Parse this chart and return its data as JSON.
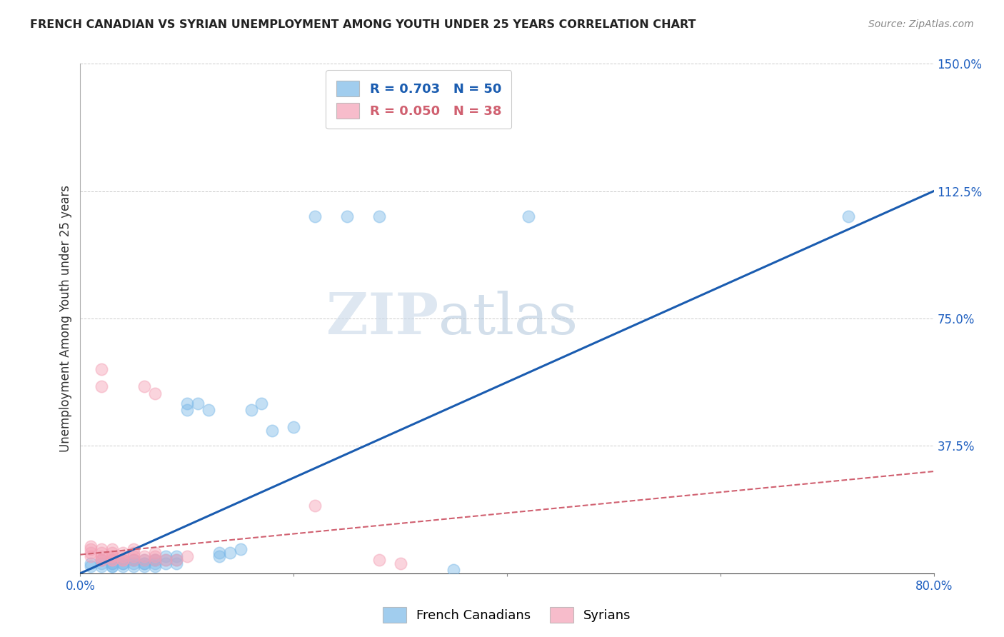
{
  "title": "FRENCH CANADIAN VS SYRIAN UNEMPLOYMENT AMONG YOUTH UNDER 25 YEARS CORRELATION CHART",
  "source": "Source: ZipAtlas.com",
  "ylabel": "Unemployment Among Youth under 25 years",
  "xlim": [
    0.0,
    0.8
  ],
  "ylim": [
    0.0,
    1.5
  ],
  "xticks": [
    0.0,
    0.2,
    0.4,
    0.6,
    0.8
  ],
  "yticks": [
    0.0,
    0.375,
    0.75,
    1.125,
    1.5
  ],
  "ytick_labels": [
    "",
    "37.5%",
    "75.0%",
    "112.5%",
    "150.0%"
  ],
  "blue_color": "#7ab8e8",
  "pink_color": "#f4a0b5",
  "blue_line_color": "#1a5cb0",
  "pink_line_color": "#d06070",
  "watermark_zip": "ZIP",
  "watermark_atlas": "atlas",
  "blue_line_x": [
    0.0,
    0.8
  ],
  "blue_line_y": [
    0.0,
    1.125
  ],
  "pink_line_x": [
    0.0,
    0.8
  ],
  "pink_line_y": [
    0.055,
    0.3
  ],
  "blue_scatter_x": [
    0.01,
    0.01,
    0.02,
    0.02,
    0.02,
    0.03,
    0.03,
    0.03,
    0.03,
    0.03,
    0.04,
    0.04,
    0.04,
    0.04,
    0.05,
    0.05,
    0.05,
    0.05,
    0.06,
    0.06,
    0.06,
    0.06,
    0.07,
    0.07,
    0.07,
    0.07,
    0.08,
    0.08,
    0.08,
    0.09,
    0.09,
    0.09,
    0.1,
    0.1,
    0.11,
    0.12,
    0.13,
    0.13,
    0.14,
    0.15,
    0.16,
    0.17,
    0.18,
    0.2,
    0.22,
    0.25,
    0.28,
    0.35,
    0.42,
    0.72
  ],
  "blue_scatter_y": [
    0.02,
    0.03,
    0.02,
    0.03,
    0.04,
    0.02,
    0.03,
    0.04,
    0.03,
    0.02,
    0.03,
    0.04,
    0.02,
    0.03,
    0.04,
    0.03,
    0.02,
    0.04,
    0.03,
    0.04,
    0.02,
    0.03,
    0.04,
    0.03,
    0.04,
    0.02,
    0.04,
    0.05,
    0.03,
    0.04,
    0.05,
    0.03,
    0.48,
    0.5,
    0.5,
    0.48,
    0.05,
    0.06,
    0.06,
    0.07,
    0.48,
    0.5,
    0.42,
    0.43,
    1.05,
    1.05,
    1.05,
    0.01,
    1.05,
    1.05
  ],
  "pink_scatter_x": [
    0.01,
    0.01,
    0.01,
    0.01,
    0.02,
    0.02,
    0.02,
    0.02,
    0.02,
    0.02,
    0.02,
    0.03,
    0.03,
    0.03,
    0.03,
    0.03,
    0.03,
    0.04,
    0.04,
    0.04,
    0.04,
    0.05,
    0.05,
    0.05,
    0.05,
    0.06,
    0.06,
    0.06,
    0.07,
    0.07,
    0.07,
    0.07,
    0.08,
    0.09,
    0.1,
    0.22,
    0.28,
    0.3
  ],
  "pink_scatter_y": [
    0.05,
    0.06,
    0.07,
    0.08,
    0.04,
    0.05,
    0.06,
    0.07,
    0.6,
    0.55,
    0.04,
    0.04,
    0.05,
    0.06,
    0.07,
    0.04,
    0.05,
    0.04,
    0.05,
    0.06,
    0.04,
    0.04,
    0.05,
    0.06,
    0.07,
    0.04,
    0.05,
    0.55,
    0.06,
    0.53,
    0.04,
    0.05,
    0.04,
    0.04,
    0.05,
    0.2,
    0.04,
    0.03
  ]
}
